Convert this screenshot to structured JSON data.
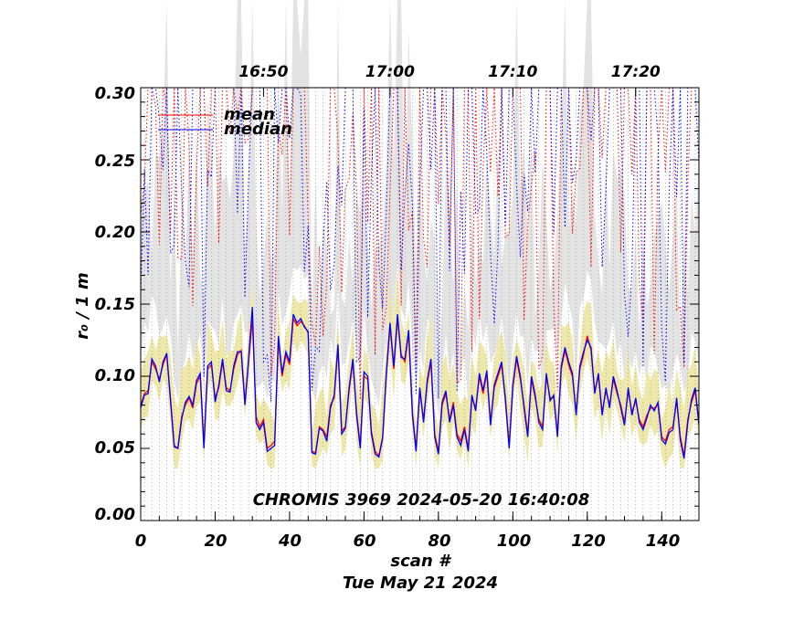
{
  "chart_data": {
    "type": "line",
    "xlabel": "scan #",
    "ylabel": "r₀ / 1 m",
    "date_label": "Tue May 21 2024",
    "annotation": "CHROMIS 3969 2024-05-20 16:40:08",
    "xlim": [
      0,
      150
    ],
    "ylim": [
      0.0,
      0.3
    ],
    "x_ticks": [
      0,
      20,
      40,
      60,
      80,
      100,
      120,
      140
    ],
    "x_tick_labels": [
      "0",
      "20",
      "40",
      "60",
      "80",
      "100",
      "120",
      "140"
    ],
    "y_ticks": [
      0.0,
      0.05,
      0.1,
      0.15,
      0.2,
      0.25,
      0.3
    ],
    "y_tick_labels": [
      "0.00",
      "0.05",
      "0.10",
      "0.15",
      "0.20",
      "0.25",
      "0.30"
    ],
    "top_axis_ticks": [
      {
        "x": 33,
        "label": "16:50"
      },
      {
        "x": 67,
        "label": "17:00"
      },
      {
        "x": 100,
        "label": "17:10"
      },
      {
        "x": 133,
        "label": "17:20"
      }
    ],
    "legend": {
      "position": "top-left",
      "entries": [
        {
          "label": "mean",
          "color": "#ff0000"
        },
        {
          "label": "median",
          "color": "#0000ff"
        }
      ]
    },
    "colors": {
      "mean": "#ff0000",
      "median": "#0000ff",
      "band": "#eee8aa",
      "gray": "#e3e3e3",
      "gridline": "#888888"
    },
    "series": [
      {
        "name": "mean",
        "x": [
          0,
          1,
          2,
          3,
          4,
          5,
          6,
          7,
          8,
          9,
          10,
          11,
          12,
          13,
          14,
          15,
          16,
          17,
          18,
          19,
          20,
          21,
          22,
          23,
          24,
          25,
          26,
          27,
          28,
          29,
          30,
          31,
          32,
          33,
          34,
          35,
          36,
          37,
          38,
          39,
          40,
          41,
          42,
          43,
          44,
          45,
          46,
          47,
          48,
          49,
          50,
          51,
          52,
          53,
          54,
          55,
          56,
          57,
          58,
          59,
          60,
          61,
          62,
          63,
          64,
          65,
          66,
          67,
          68,
          69,
          70,
          71,
          72,
          73,
          74,
          75,
          76,
          77,
          78,
          79,
          80,
          81,
          82,
          83,
          84,
          85,
          86,
          87,
          88,
          89,
          90,
          91,
          92,
          93,
          94,
          95,
          96,
          97,
          98,
          99,
          100,
          101,
          102,
          103,
          104,
          105,
          106,
          107,
          108,
          109,
          110,
          111,
          112,
          113,
          114,
          115,
          116,
          117,
          118,
          119,
          120,
          121,
          122,
          123,
          124,
          125,
          126,
          127,
          128,
          129,
          130,
          131,
          132,
          133,
          134,
          135,
          136,
          137,
          138,
          139,
          140,
          141,
          142,
          143,
          144,
          145,
          146,
          147,
          148,
          149,
          150
        ],
        "values": [
          0.08,
          0.088,
          0.09,
          0.11,
          0.105,
          0.098,
          0.108,
          0.115,
          0.085,
          0.052,
          0.05,
          0.072,
          0.08,
          0.085,
          0.078,
          0.095,
          0.1,
          0.052,
          0.105,
          0.108,
          0.085,
          0.092,
          0.11,
          0.092,
          0.09,
          0.105,
          0.115,
          0.118,
          0.082,
          0.11,
          0.14,
          0.072,
          0.065,
          0.07,
          0.05,
          0.052,
          0.055,
          0.125,
          0.1,
          0.115,
          0.108,
          0.14,
          0.135,
          0.138,
          0.135,
          0.13,
          0.048,
          0.047,
          0.065,
          0.063,
          0.058,
          0.08,
          0.085,
          0.12,
          0.062,
          0.065,
          0.09,
          0.11,
          0.075,
          0.052,
          0.1,
          0.098,
          0.062,
          0.048,
          0.045,
          0.058,
          0.1,
          0.135,
          0.105,
          0.14,
          0.115,
          0.11,
          0.13,
          0.075,
          0.05,
          0.09,
          0.07,
          0.095,
          0.11,
          0.06,
          0.048,
          0.08,
          0.088,
          0.07,
          0.082,
          0.06,
          0.055,
          0.065,
          0.05,
          0.085,
          0.078,
          0.1,
          0.088,
          0.102,
          0.068,
          0.092,
          0.1,
          0.108,
          0.085,
          0.052,
          0.092,
          0.112,
          0.098,
          0.08,
          0.06,
          0.098,
          0.085,
          0.07,
          0.065,
          0.1,
          0.085,
          0.085,
          0.06,
          0.105,
          0.118,
          0.108,
          0.1,
          0.075,
          0.105,
          0.115,
          0.128,
          0.118,
          0.09,
          0.1,
          0.075,
          0.09,
          0.08,
          0.098,
          0.088,
          0.08,
          0.068,
          0.09,
          0.075,
          0.083,
          0.07,
          0.065,
          0.073,
          0.078,
          0.078,
          0.08,
          0.058,
          0.055,
          0.063,
          0.065,
          0.083,
          0.058,
          0.045,
          0.07,
          0.082,
          0.09,
          0.068
        ]
      },
      {
        "name": "median",
        "x": [
          0,
          1,
          2,
          3,
          4,
          5,
          6,
          7,
          8,
          9,
          10,
          11,
          12,
          13,
          14,
          15,
          16,
          17,
          18,
          19,
          20,
          21,
          22,
          23,
          24,
          25,
          26,
          27,
          28,
          29,
          30,
          31,
          32,
          33,
          34,
          35,
          36,
          37,
          38,
          39,
          40,
          41,
          42,
          43,
          44,
          45,
          46,
          47,
          48,
          49,
          50,
          51,
          52,
          53,
          54,
          55,
          56,
          57,
          58,
          59,
          60,
          61,
          62,
          63,
          64,
          65,
          66,
          67,
          68,
          69,
          70,
          71,
          72,
          73,
          74,
          75,
          76,
          77,
          78,
          79,
          80,
          81,
          82,
          83,
          84,
          85,
          86,
          87,
          88,
          89,
          90,
          91,
          92,
          93,
          94,
          95,
          96,
          97,
          98,
          99,
          100,
          101,
          102,
          103,
          104,
          105,
          106,
          107,
          108,
          109,
          110,
          111,
          112,
          113,
          114,
          115,
          116,
          117,
          118,
          119,
          120,
          121,
          122,
          123,
          124,
          125,
          126,
          127,
          128,
          129,
          130,
          131,
          132,
          133,
          134,
          135,
          136,
          137,
          138,
          139,
          140,
          141,
          142,
          143,
          144,
          145,
          146,
          147,
          148,
          149,
          150
        ],
        "values": [
          0.078,
          0.087,
          0.088,
          0.112,
          0.107,
          0.096,
          0.11,
          0.116,
          0.083,
          0.051,
          0.05,
          0.07,
          0.082,
          0.086,
          0.08,
          0.097,
          0.102,
          0.05,
          0.107,
          0.11,
          0.082,
          0.094,
          0.112,
          0.09,
          0.089,
          0.107,
          0.117,
          0.117,
          0.08,
          0.112,
          0.148,
          0.068,
          0.063,
          0.068,
          0.048,
          0.05,
          0.052,
          0.128,
          0.102,
          0.117,
          0.11,
          0.143,
          0.137,
          0.14,
          0.134,
          0.131,
          0.047,
          0.046,
          0.064,
          0.062,
          0.055,
          0.078,
          0.087,
          0.122,
          0.06,
          0.064,
          0.092,
          0.112,
          0.073,
          0.05,
          0.103,
          0.1,
          0.06,
          0.046,
          0.044,
          0.057,
          0.102,
          0.137,
          0.107,
          0.143,
          0.113,
          0.112,
          0.132,
          0.073,
          0.048,
          0.092,
          0.068,
          0.097,
          0.112,
          0.058,
          0.046,
          0.082,
          0.09,
          0.068,
          0.08,
          0.058,
          0.052,
          0.063,
          0.048,
          0.087,
          0.076,
          0.102,
          0.09,
          0.104,
          0.066,
          0.094,
          0.102,
          0.11,
          0.083,
          0.05,
          0.094,
          0.114,
          0.1,
          0.078,
          0.058,
          0.1,
          0.087,
          0.068,
          0.063,
          0.102,
          0.083,
          0.087,
          0.058,
          0.107,
          0.12,
          0.11,
          0.102,
          0.073,
          0.107,
          0.117,
          0.125,
          0.12,
          0.088,
          0.102,
          0.073,
          0.092,
          0.078,
          0.1,
          0.09,
          0.078,
          0.066,
          0.092,
          0.073,
          0.085,
          0.068,
          0.063,
          0.071,
          0.08,
          0.076,
          0.082,
          0.056,
          0.053,
          0.061,
          0.063,
          0.085,
          0.056,
          0.043,
          0.068,
          0.084,
          0.092,
          0.066
        ]
      }
    ]
  }
}
